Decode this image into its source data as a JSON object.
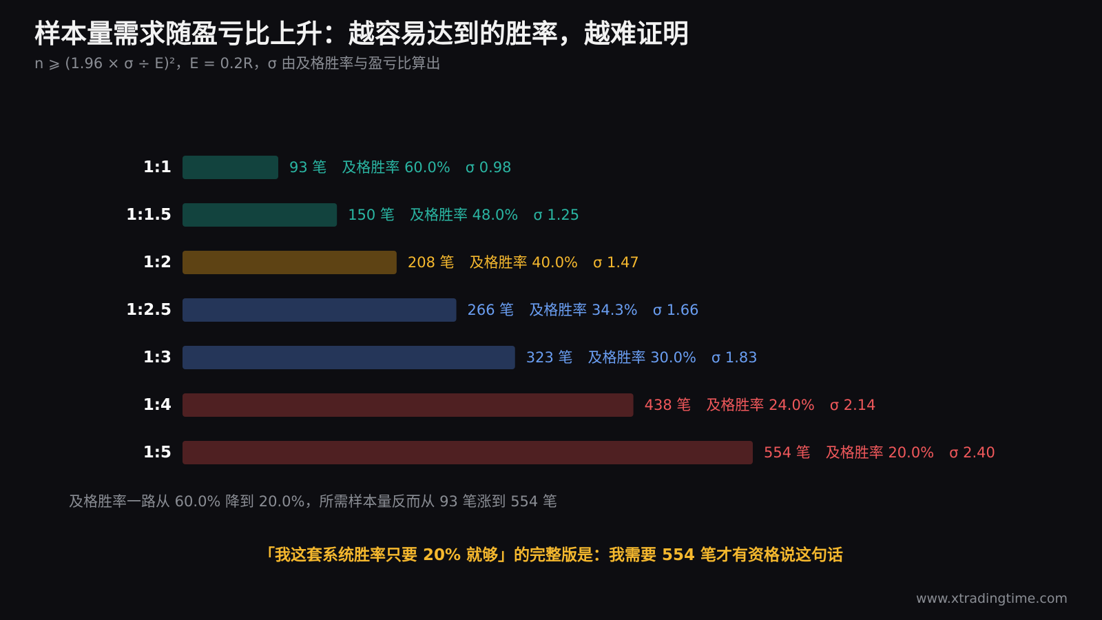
{
  "title": "样本量需求随盈亏比上升：越容易达到的胜率，越难证明",
  "subtitle": "n ⩾ (1.96 × σ ÷ E)²，E = 0.2R，σ 由及格胜率与盈亏比算出",
  "caption": "及格胜率一路从 60.0% 降到 20.0%，所需样本量反而从 93 笔涨到 554 笔",
  "conclusion": "「我这套系统胜率只要 20% 就够」的完整版是：我需要 554 笔才有资格说这句话",
  "watermark": "www.xtradingtime.com",
  "colors": {
    "background": "#0d0d11",
    "label": "#ffffff",
    "conclusion": "#f5b82e",
    "teal_text": "#2ab5a2",
    "teal_bar": "#12433e",
    "gold_text": "#f5b82e",
    "gold_bar": "#5e4314",
    "blue_text": "#6a9ef2",
    "blue_bar": "#253659",
    "red_text": "#f0585b",
    "red_bar": "#4f2022",
    "muted": "#8a8d94"
  },
  "chart_data": {
    "type": "bar",
    "orientation": "horizontal",
    "grid": false,
    "legend": "none",
    "unit": "笔",
    "win_rate_label": "及格胜率",
    "sigma_label": "σ",
    "categories": [
      "1:1",
      "1:1.5",
      "1:2",
      "1:2.5",
      "1:3",
      "1:4",
      "1:5"
    ],
    "values": [
      93,
      150,
      208,
      266,
      323,
      438,
      554
    ],
    "win_rates": [
      "60.0%",
      "48.0%",
      "40.0%",
      "34.3%",
      "30.0%",
      "24.0%",
      "20.0%"
    ],
    "sigmas": [
      "0.98",
      "1.25",
      "1.47",
      "1.66",
      "1.83",
      "2.14",
      "2.40"
    ],
    "color_groups": [
      "teal",
      "teal",
      "gold",
      "blue",
      "blue",
      "red",
      "red"
    ],
    "xlim": [
      0,
      554
    ]
  }
}
